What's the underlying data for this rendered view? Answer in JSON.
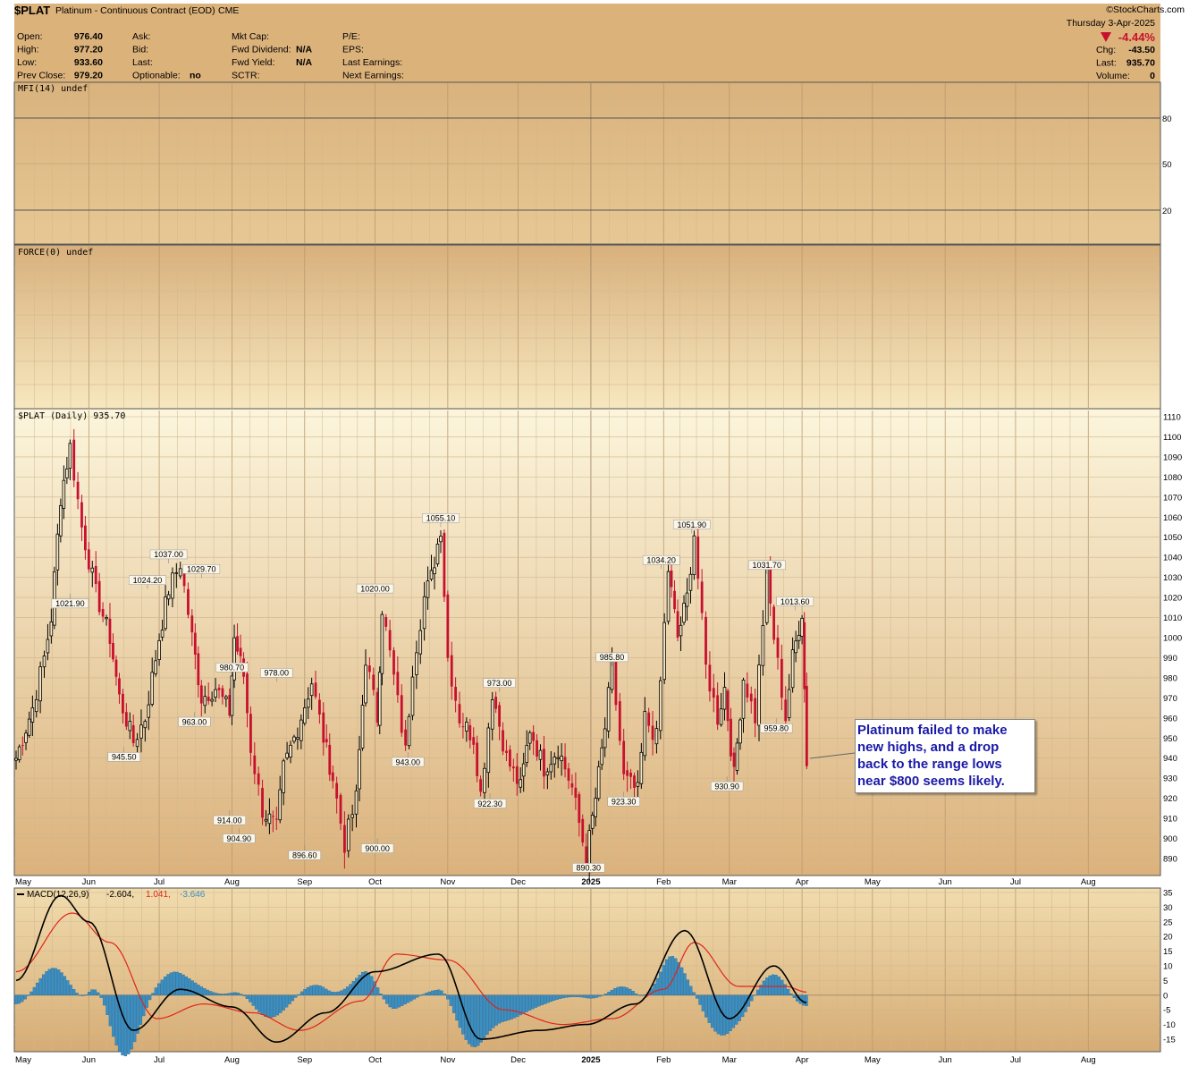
{
  "header": {
    "symbol": "$PLAT",
    "description": "Platinum - Continuous Contract (EOD)",
    "exchange": "CME",
    "watermark": "©StockCharts.com",
    "date": "Thursday  3-Apr-2025",
    "change_pct": "-4.44%",
    "left_fields": [
      {
        "label": "Open:",
        "value": "976.40"
      },
      {
        "label": "High:",
        "value": "977.20"
      },
      {
        "label": "Low:",
        "value": "933.60"
      },
      {
        "label": "Prev Close:",
        "value": "979.20"
      }
    ],
    "mid_fields": [
      {
        "label": "Ask:",
        "value": ""
      },
      {
        "label": "Bid:",
        "value": ""
      },
      {
        "label": "Last:",
        "value": ""
      },
      {
        "label": "Optionable:",
        "value": "no"
      }
    ],
    "mid2_fields": [
      {
        "label": "Mkt Cap:",
        "value": ""
      },
      {
        "label": "Fwd Dividend:",
        "value": "N/A"
      },
      {
        "label": "Fwd Yield:",
        "value": "N/A"
      },
      {
        "label": "SCTR:",
        "value": ""
      }
    ],
    "mid3_fields": [
      {
        "label": "P/E:",
        "value": ""
      },
      {
        "label": "EPS:",
        "value": ""
      },
      {
        "label": "Last Earnings:",
        "value": ""
      },
      {
        "label": "Next Earnings:",
        "value": ""
      }
    ],
    "right_fields": [
      {
        "label": "Chg:",
        "value": "-43.50"
      },
      {
        "label": "Last:",
        "value": "935.70"
      },
      {
        "label": "Volume:",
        "value": "0"
      }
    ]
  },
  "panels": {
    "mfi_label": "MFI(14) undef",
    "mfi_ticks": [
      "80",
      "50",
      "20"
    ],
    "force_label": "FORCE(0) undef",
    "price_label": "$PLAT (Daily) 935.70",
    "macd_label_prefix": "MACD(12,26,9)",
    "macd_value": "-2.604,",
    "macd_signal": "1.041,",
    "macd_hist": "-3.646"
  },
  "annotation": {
    "text": "Platinum failed to make new highs, and a drop back to the range lows near $800 seems likely."
  },
  "colors": {
    "up": "#000000",
    "down": "#c8102e",
    "macd": "#000000",
    "signal": "#e0241a",
    "histogram": "#3a8fc4",
    "panel_top": "#fbf2d6",
    "panel_bottom": "#d9b07a"
  },
  "chart_data": [
    {
      "type": "line",
      "title": "$PLAT (Daily) 935.70",
      "series": [
        {
          "name": "$PLAT",
          "x": [
            "2024-05-01",
            "2024-05-08",
            "2024-05-13",
            "2024-05-16",
            "2024-05-20",
            "2024-05-24",
            "2024-05-29",
            "2024-06-04",
            "2024-06-10",
            "2024-06-14",
            "2024-06-20",
            "2024-06-25",
            "2024-07-01",
            "2024-07-05",
            "2024-07-10",
            "2024-07-15",
            "2024-07-19",
            "2024-07-25",
            "2024-07-31",
            "2024-08-02",
            "2024-08-06",
            "2024-08-09",
            "2024-08-14",
            "2024-08-20",
            "2024-08-23",
            "2024-08-29",
            "2024-09-04",
            "2024-09-09",
            "2024-09-13",
            "2024-09-18",
            "2024-09-23",
            "2024-09-27",
            "2024-10-02",
            "2024-10-04",
            "2024-10-09",
            "2024-10-14",
            "2024-10-17",
            "2024-10-22",
            "2024-10-25",
            "2024-10-29",
            "2024-11-01",
            "2024-11-06",
            "2024-11-12",
            "2024-11-15",
            "2024-11-20",
            "2024-11-26",
            "2024-12-02",
            "2024-12-06",
            "2024-12-12",
            "2024-12-18",
            "2024-12-24",
            "2024-12-30",
            "2025-01-03",
            "2025-01-07",
            "2025-01-10",
            "2025-01-15",
            "2025-01-21",
            "2025-01-24",
            "2025-01-29",
            "2025-02-03",
            "2025-02-07",
            "2025-02-11",
            "2025-02-14",
            "2025-02-19",
            "2025-02-24",
            "2025-02-27",
            "2025-03-03",
            "2025-03-07",
            "2025-03-12",
            "2025-03-17",
            "2025-03-20",
            "2025-03-25",
            "2025-03-28",
            "2025-04-01",
            "2025-04-03"
          ],
          "values": [
            940,
            965,
            990,
            1010,
            1070,
            1095,
            1055,
            1022,
            1000,
            970,
            948,
            960,
            1000,
            1024,
            1037,
            1000,
            970,
            975,
            963,
            1000,
            981,
            945,
            914,
            905,
            935,
            955,
            978,
            950,
            930,
            897,
            920,
            990,
            960,
            1015,
            980,
            943,
            985,
            1020,
            1030,
            1055,
            990,
            960,
            950,
            922,
            973,
            940,
            925,
            955,
            935,
            945,
            925,
            890,
            920,
            955,
            986,
            930,
            923,
            960,
            950,
            1034,
            1000,
            1020,
            1052,
            985,
            960,
            975,
            931,
            980,
            960,
            1032,
            1000,
            960,
            990,
            1013,
            936
          ]
        }
      ],
      "labels": [
        "1021.90",
        "1024.20",
        "1037.00",
        "1029.70",
        "945.50",
        "963.00",
        "980.70",
        "914.00",
        "904.90",
        "978.00",
        "896.60",
        "1020.00",
        "900.00",
        "943.00",
        "1055.10",
        "973.00",
        "922.30",
        "890.30",
        "985.80",
        "923.30",
        "1034.20",
        "1051.90",
        "930.90",
        "1031.70",
        "959.80",
        "1013.60"
      ],
      "y_ticks": [
        "1110",
        "1100",
        "1090",
        "1080",
        "1070",
        "1060",
        "1050",
        "1040",
        "1030",
        "1020",
        "1010",
        "1000",
        "990",
        "980",
        "970",
        "960",
        "950",
        "940",
        "930",
        "920",
        "910",
        "900",
        "890"
      ],
      "ylim": [
        880,
        1112
      ],
      "x_ticks": [
        "May",
        "Jun",
        "Jul",
        "Aug",
        "Sep",
        "Oct",
        "Nov",
        "Dec",
        "2025",
        "Feb",
        "Mar",
        "Apr",
        "May",
        "Jun",
        "Jul",
        "Aug"
      ]
    },
    {
      "type": "line",
      "title": "MACD(12,26,9)",
      "series": [
        {
          "name": "MACD",
          "x": [
            "2024-05-01",
            "2024-05-20",
            "2024-06-01",
            "2024-06-20",
            "2024-07-10",
            "2024-08-01",
            "2024-08-20",
            "2024-09-10",
            "2024-10-01",
            "2024-10-28",
            "2024-11-15",
            "2024-12-10",
            "2024-12-30",
            "2025-01-20",
            "2025-02-10",
            "2025-03-01",
            "2025-03-20",
            "2025-04-03"
          ],
          "values": [
            5,
            34,
            25,
            -12,
            2,
            -4,
            -16,
            -6,
            8,
            14,
            -15,
            -12,
            -10,
            -3,
            22,
            -8,
            10,
            -2.604
          ]
        },
        {
          "name": "Signal",
          "x": [
            "2024-05-01",
            "2024-05-25",
            "2024-06-10",
            "2024-06-30",
            "2024-07-20",
            "2024-08-10",
            "2024-08-30",
            "2024-09-25",
            "2024-10-10",
            "2024-11-01",
            "2024-11-25",
            "2024-12-20",
            "2025-01-10",
            "2025-02-01",
            "2025-02-14",
            "2025-03-05",
            "2025-03-25",
            "2025-04-03"
          ],
          "values": [
            8,
            28,
            18,
            -8,
            -3,
            -6,
            -12,
            -2,
            14,
            12,
            -5,
            -10,
            -8,
            2,
            18,
            3,
            3,
            1.041
          ]
        }
      ],
      "y_ticks": [
        "35",
        "30",
        "25",
        "20",
        "15",
        "10",
        "5",
        "0",
        "-5",
        "-10",
        "-15"
      ],
      "ylim": [
        -18,
        36
      ],
      "x_ticks": [
        "May",
        "Jun",
        "Jul",
        "Aug",
        "Sep",
        "Oct",
        "Nov",
        "Dec",
        "2025",
        "Feb",
        "Mar",
        "Apr",
        "May",
        "Jun",
        "Jul",
        "Aug"
      ]
    }
  ]
}
